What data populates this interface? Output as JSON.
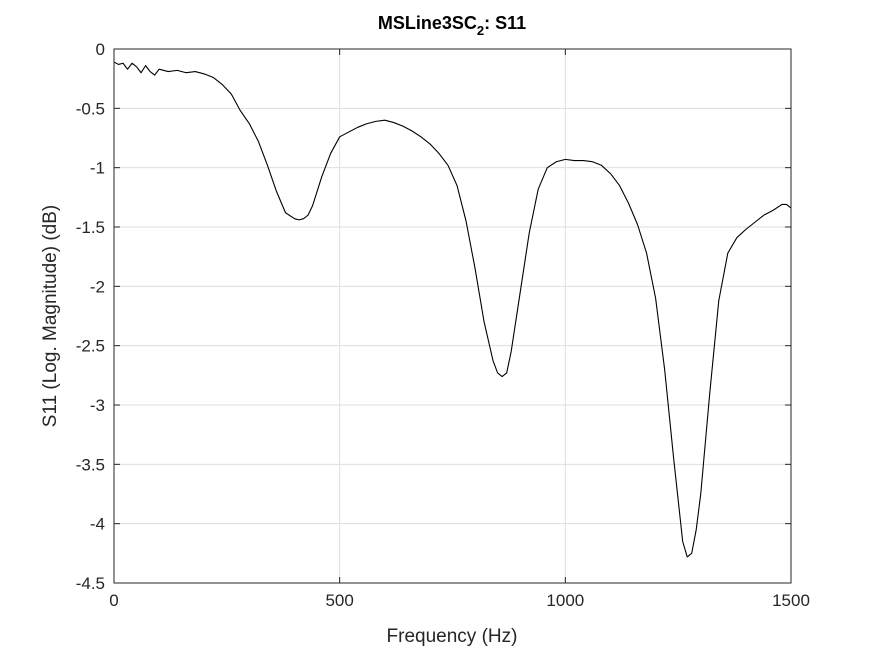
{
  "chart_data": {
    "type": "line",
    "title": "MSLine3SC",
    "title_subscript": "2",
    "title_suffix": ": S11",
    "xlabel": "Frequency (Hz)",
    "ylabel": "S11 (Log. Magnitude) (dB)",
    "xlim": [
      0,
      1500
    ],
    "ylim": [
      -4.5,
      0
    ],
    "xticks": [
      0,
      500,
      1000,
      1500
    ],
    "xtick_labels": [
      "0",
      "500",
      "1000",
      "1500"
    ],
    "yticks": [
      0,
      -0.5,
      -1,
      -1.5,
      -2,
      -2.5,
      -3,
      -3.5,
      -4,
      -4.5
    ],
    "ytick_labels": [
      "0",
      "-0.5",
      "-1",
      "-1.5",
      "-2",
      "-2.5",
      "-3",
      "-3.5",
      "-4",
      "-4.5"
    ],
    "grid": true,
    "line_color": "#000000",
    "series": [
      {
        "x": [
          0,
          10,
          20,
          30,
          40,
          50,
          60,
          70,
          80,
          90,
          100,
          120,
          140,
          160,
          180,
          200,
          220,
          240,
          260,
          280,
          300,
          320,
          340,
          360,
          380,
          400,
          410,
          420,
          430,
          440,
          450,
          460,
          480,
          500,
          520,
          540,
          560,
          580,
          600,
          620,
          640,
          660,
          680,
          700,
          720,
          740,
          760,
          780,
          800,
          820,
          840,
          850,
          860,
          870,
          880,
          900,
          920,
          940,
          960,
          980,
          1000,
          1020,
          1040,
          1060,
          1080,
          1100,
          1120,
          1140,
          1160,
          1180,
          1200,
          1220,
          1240,
          1260,
          1270,
          1280,
          1290,
          1300,
          1320,
          1340,
          1360,
          1380,
          1400,
          1420,
          1440,
          1460,
          1480,
          1490,
          1500
        ],
        "y": [
          -0.11,
          -0.13,
          -0.12,
          -0.17,
          -0.12,
          -0.15,
          -0.2,
          -0.14,
          -0.19,
          -0.22,
          -0.17,
          -0.19,
          -0.18,
          -0.2,
          -0.19,
          -0.21,
          -0.24,
          -0.3,
          -0.38,
          -0.52,
          -0.63,
          -0.78,
          -0.98,
          -1.2,
          -1.38,
          -1.43,
          -1.44,
          -1.43,
          -1.4,
          -1.32,
          -1.2,
          -1.08,
          -0.88,
          -0.74,
          -0.7,
          -0.66,
          -0.63,
          -0.61,
          -0.6,
          -0.62,
          -0.65,
          -0.69,
          -0.74,
          -0.8,
          -0.88,
          -0.98,
          -1.15,
          -1.45,
          -1.85,
          -2.3,
          -2.63,
          -2.73,
          -2.76,
          -2.73,
          -2.55,
          -2.05,
          -1.55,
          -1.18,
          -1.0,
          -0.95,
          -0.93,
          -0.94,
          -0.94,
          -0.95,
          -0.98,
          -1.05,
          -1.15,
          -1.3,
          -1.48,
          -1.72,
          -2.1,
          -2.7,
          -3.45,
          -4.15,
          -4.28,
          -4.25,
          -4.05,
          -3.75,
          -2.9,
          -2.12,
          -1.72,
          -1.59,
          -1.52,
          -1.46,
          -1.4,
          -1.36,
          -1.31,
          -1.31,
          -1.34
        ]
      }
    ]
  }
}
